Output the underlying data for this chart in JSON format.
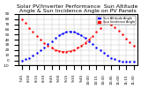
{
  "title": "Solar PV/Inverter Performance  Sun Altitude Angle & Sun Incidence Angle on PV Panels",
  "legend_labels": [
    "Sun Altitude Angle",
    "Sun Incidence Angle"
  ],
  "legend_colors": [
    "#0000ff",
    "#ff0000"
  ],
  "blue_x": [
    0,
    0.5,
    1,
    1.5,
    2,
    2.5,
    3,
    3.5,
    4,
    4.5,
    5,
    5.5,
    6,
    6.5,
    7,
    7.5,
    8,
    8.5,
    9,
    9.5,
    10,
    10.5,
    11,
    11.5,
    12,
    12.5,
    13,
    13.5,
    14,
    14.5,
    15
  ],
  "blue_y": [
    0,
    2,
    5,
    9,
    14,
    19,
    25,
    31,
    37,
    43,
    48,
    52,
    55,
    56,
    55,
    52,
    48,
    43,
    37,
    31,
    25,
    19,
    14,
    9,
    5,
    2,
    0,
    -2,
    -3,
    -3,
    -2
  ],
  "red_x": [
    0,
    0.5,
    1,
    1.5,
    2,
    2.5,
    3,
    3.5,
    4,
    4.5,
    5,
    5.5,
    6,
    6.5,
    7,
    7.5,
    8,
    8.5,
    9,
    9.5,
    10,
    10.5,
    11,
    11.5,
    12,
    12.5,
    13,
    13.5,
    14,
    14.5,
    15
  ],
  "red_y": [
    80,
    72,
    63,
    55,
    47,
    40,
    34,
    28,
    24,
    20,
    18,
    17,
    17,
    18,
    20,
    24,
    28,
    34,
    40,
    47,
    55,
    63,
    72,
    74,
    70,
    65,
    58,
    50,
    42,
    35,
    28
  ],
  "xlim": [
    -0.5,
    15.5
  ],
  "ylim": [
    -10,
    90
  ],
  "yticks": [
    -10,
    0,
    10,
    20,
    30,
    40,
    50,
    60,
    70,
    80,
    90
  ],
  "xtick_labels": [
    "7:45",
    "8:00",
    "8:15",
    "8:30",
    "8:45",
    "9:00",
    "9:15",
    "9:30",
    "9:45",
    "10:00",
    "10:15",
    "10:30",
    "10:45",
    "11:00",
    "11:15",
    "11:30"
  ],
  "background_color": "#ffffff",
  "grid_color": "#c0c0c0",
  "title_fontsize": 4.5,
  "tick_fontsize": 3.0
}
